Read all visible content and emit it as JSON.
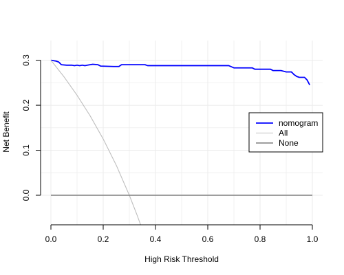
{
  "chart_data": {
    "type": "line",
    "title": "",
    "xlabel": "High Risk Threshold",
    "ylabel": "Net Benefit",
    "xlim": [
      0,
      1
    ],
    "ylim": [
      -0.065,
      0.33
    ],
    "x_ticks": [
      0,
      0.2,
      0.4,
      0.6,
      0.8,
      1
    ],
    "x_tick_labels": [
      "0.0",
      "0.2",
      "0.4",
      "0.6",
      "0.8",
      "1.0"
    ],
    "y_ticks": [
      0,
      0.1,
      0.2,
      0.3
    ],
    "y_tick_labels": [
      "0.0",
      "0.1",
      "0.2",
      "0.3"
    ],
    "grid": true,
    "legend_position": "right",
    "series": [
      {
        "name": "nomogram",
        "color": "#0000ff",
        "x": [
          0.0,
          0.02,
          0.03,
          0.04,
          0.06,
          0.08,
          0.09,
          0.1,
          0.11,
          0.12,
          0.13,
          0.14,
          0.16,
          0.18,
          0.19,
          0.24,
          0.26,
          0.27,
          0.36,
          0.37,
          0.68,
          0.7,
          0.77,
          0.78,
          0.84,
          0.85,
          0.88,
          0.9,
          0.92,
          0.93,
          0.94,
          0.95,
          0.97,
          0.98,
          0.99
        ],
        "y": [
          0.3,
          0.298,
          0.296,
          0.29,
          0.289,
          0.289,
          0.288,
          0.289,
          0.288,
          0.289,
          0.288,
          0.289,
          0.291,
          0.29,
          0.287,
          0.286,
          0.286,
          0.29,
          0.29,
          0.288,
          0.288,
          0.283,
          0.283,
          0.28,
          0.28,
          0.277,
          0.277,
          0.274,
          0.274,
          0.268,
          0.264,
          0.262,
          0.262,
          0.256,
          0.245
        ]
      },
      {
        "name": "All",
        "color": "#bebebe",
        "x": [
          0.0,
          0.05,
          0.1,
          0.15,
          0.2,
          0.25,
          0.3,
          0.33,
          0.346
        ],
        "y": [
          0.3,
          0.2632,
          0.2222,
          0.1765,
          0.125,
          0.0667,
          0.0,
          -0.0448,
          -0.0703
        ]
      },
      {
        "name": "None",
        "color": "#7f7f7f",
        "x": [
          0.0,
          1.0
        ],
        "y": [
          0.0,
          0.0
        ]
      }
    ]
  }
}
